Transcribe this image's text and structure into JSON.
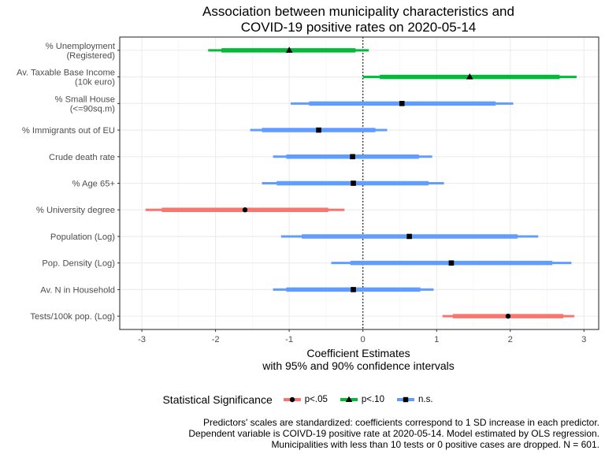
{
  "chart_data": {
    "type": "coefficient-plot",
    "title_lines": [
      "Association between municipality characteristics and",
      "COVID-19 positive rates on 2020-05-14"
    ],
    "xlabel_lines": [
      "Coefficient Estimates",
      "with 95% and 90% confidence intervals"
    ],
    "xlim": [
      -3.3,
      3.2
    ],
    "xticks": [
      -3,
      -2,
      -1,
      0,
      1,
      2,
      3
    ],
    "reference_line": 0,
    "grid": true,
    "legend_position": "bottom",
    "legend_title": "Statistical Significance",
    "legend": [
      {
        "key": "p05",
        "label": "p<.05",
        "color": "#F8766D",
        "shape": "circle"
      },
      {
        "key": "p10",
        "label": "p<.10",
        "color": "#00BA38",
        "shape": "triangle"
      },
      {
        "key": "ns",
        "label": "n.s.",
        "color": "#619CFF",
        "shape": "square"
      }
    ],
    "predictors": [
      {
        "label_lines": [
          "% Unemployment",
          "(Registered)"
        ],
        "estimate": -1.0,
        "ci95": [
          -2.1,
          0.08
        ],
        "ci90": [
          -1.92,
          -0.1
        ],
        "sig": "p10"
      },
      {
        "label_lines": [
          "Av. Taxable Base Income",
          "(10k euro)"
        ],
        "estimate": 1.45,
        "ci95": [
          0.0,
          2.9
        ],
        "ci90": [
          0.23,
          2.67
        ],
        "sig": "p10"
      },
      {
        "label_lines": [
          "% Small House",
          "(<=90sq.m)"
        ],
        "estimate": 0.53,
        "ci95": [
          -0.98,
          2.04
        ],
        "ci90": [
          -0.73,
          1.8
        ],
        "sig": "ns"
      },
      {
        "label_lines": [
          "% Immigrants out of EU"
        ],
        "estimate": -0.6,
        "ci95": [
          -1.53,
          0.33
        ],
        "ci90": [
          -1.37,
          0.17
        ],
        "sig": "ns"
      },
      {
        "label_lines": [
          "Crude death rate"
        ],
        "estimate": -0.14,
        "ci95": [
          -1.22,
          0.94
        ],
        "ci90": [
          -1.04,
          0.76
        ],
        "sig": "ns"
      },
      {
        "label_lines": [
          "% Age 65+"
        ],
        "estimate": -0.13,
        "ci95": [
          -1.37,
          1.1
        ],
        "ci90": [
          -1.17,
          0.89
        ],
        "sig": "ns"
      },
      {
        "label_lines": [
          "% University degree"
        ],
        "estimate": -1.6,
        "ci95": [
          -2.95,
          -0.25
        ],
        "ci90": [
          -2.73,
          -0.47
        ],
        "sig": "p05"
      },
      {
        "label_lines": [
          "Population (Log)"
        ],
        "estimate": 0.63,
        "ci95": [
          -1.11,
          2.38
        ],
        "ci90": [
          -0.83,
          2.1
        ],
        "sig": "ns"
      },
      {
        "label_lines": [
          "Pop. Density (Log)"
        ],
        "estimate": 1.2,
        "ci95": [
          -0.43,
          2.83
        ],
        "ci90": [
          -0.17,
          2.57
        ],
        "sig": "ns"
      },
      {
        "label_lines": [
          "Av. N in Household"
        ],
        "estimate": -0.13,
        "ci95": [
          -1.22,
          0.96
        ],
        "ci90": [
          -1.04,
          0.78
        ],
        "sig": "ns"
      },
      {
        "label_lines": [
          "Tests/100k pop. (Log)"
        ],
        "estimate": 1.97,
        "ci95": [
          1.08,
          2.87
        ],
        "ci90": [
          1.22,
          2.72
        ],
        "sig": "p05"
      }
    ]
  },
  "caption_lines": [
    "Predictors' scales are standardized: coefficients correspond to 1 SD increase in each predictor.",
    "Dependent variable is COIVD-19 positive rate at 2020-05-14. Model estimated by OLS regression.",
    "Municipalities with less than 10 tests or 0 positive cases are dropped. N = 601."
  ]
}
